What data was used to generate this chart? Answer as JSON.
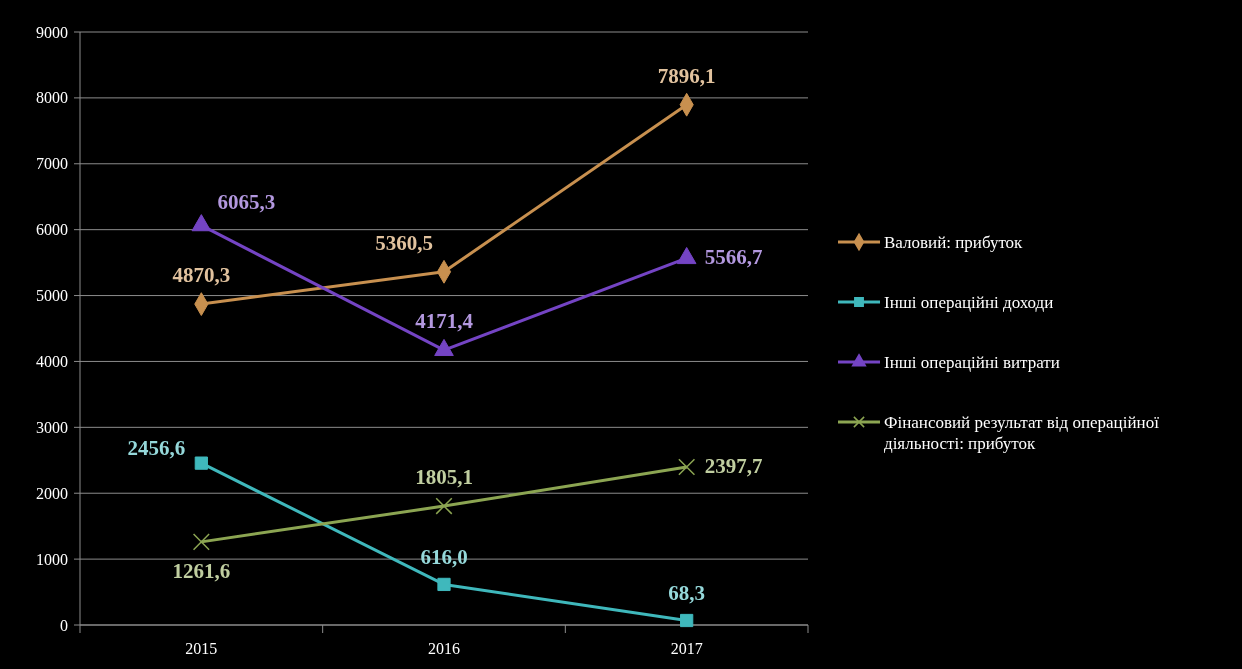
{
  "chart_data": {
    "type": "line",
    "categories": [
      "2015",
      "2016",
      "2017"
    ],
    "ylim": [
      0,
      9000
    ],
    "yticks": [
      0,
      1000,
      2000,
      3000,
      4000,
      5000,
      6000,
      7000,
      8000,
      9000
    ],
    "grid": "y",
    "legend": "right",
    "series": [
      {
        "name": "Валовий: прибуток",
        "color": "#c8904f",
        "marker": "diamond",
        "values": [
          4870.3,
          5360.5,
          7896.1
        ],
        "value_labels": [
          "4870,3",
          "5360,5",
          "7896,1"
        ]
      },
      {
        "name": "Інші операційні доходи",
        "color": "#3fb8bc",
        "marker": "square",
        "values": [
          2456.6,
          616.0,
          68.3
        ],
        "value_labels": [
          "2456,6",
          "616,0",
          "68,3"
        ]
      },
      {
        "name": "Інші операційні витрати",
        "color": "#7444c4",
        "marker": "triangle",
        "values": [
          6065.3,
          4171.4,
          5566.7
        ],
        "value_labels": [
          "6065,3",
          "4171,4",
          "5566,7"
        ]
      },
      {
        "name": "Фінансовий результат  від операційної діяльності: прибуток",
        "color": "#8ca552",
        "marker": "cross",
        "values": [
          1261.6,
          1805.1,
          2397.7
        ],
        "value_labels": [
          "1261,6",
          "1805,1",
          "2397,7"
        ]
      }
    ]
  }
}
